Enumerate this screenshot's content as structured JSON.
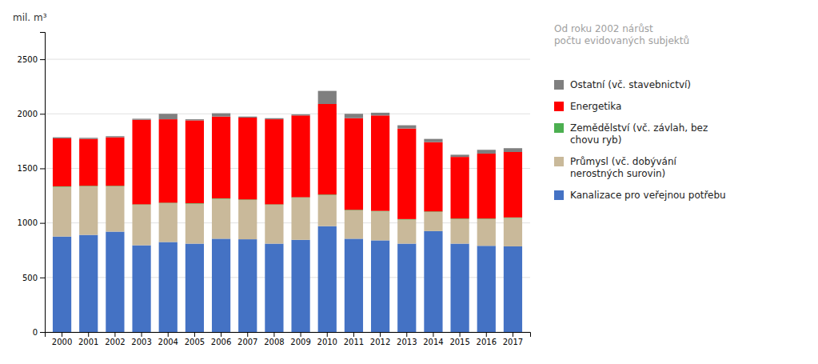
{
  "chart_data": {
    "type": "bar",
    "stacked": true,
    "categories": [
      "2000",
      "2001",
      "2002",
      "2003",
      "2004",
      "2005",
      "2006",
      "2007",
      "2008",
      "2009",
      "2010",
      "2011",
      "2012",
      "2013",
      "2014",
      "2015",
      "2016",
      "2017"
    ],
    "series": [
      {
        "name": "Kanalizace pro veřejnou potřebu",
        "color": "#4472C4",
        "values": [
          875,
          890,
          920,
          795,
          825,
          810,
          855,
          850,
          810,
          845,
          970,
          855,
          840,
          810,
          925,
          810,
          790,
          785
        ]
      },
      {
        "name": "Průmysl (vč. dobývání\nnerostných surovin)",
        "color": "#C9B99A",
        "values": [
          455,
          445,
          415,
          370,
          355,
          365,
          365,
          360,
          355,
          385,
          285,
          260,
          265,
          220,
          175,
          225,
          245,
          260
        ]
      },
      {
        "name": "Zemědělství (vč. závlah, bez\nchovu ryb)",
        "color": "#4CAF50",
        "values": [
          5,
          5,
          5,
          5,
          5,
          5,
          5,
          5,
          5,
          5,
          5,
          5,
          5,
          5,
          5,
          5,
          5,
          5
        ]
      },
      {
        "name": "Energetika",
        "color": "#FF0000",
        "values": [
          440,
          430,
          445,
          775,
          765,
          760,
          750,
          750,
          780,
          750,
          830,
          840,
          875,
          830,
          635,
          565,
          595,
          600
        ]
      },
      {
        "name": "Ostatní (vč. stavebnictví)",
        "color": "#7F7F7F",
        "values": [
          10,
          10,
          10,
          10,
          50,
          10,
          30,
          10,
          10,
          10,
          120,
          40,
          25,
          30,
          30,
          20,
          35,
          35
        ]
      }
    ],
    "y_label": "mil. m³",
    "annotation": "Od roku 2002 nárůst\npočtu evidovaných subjektů",
    "ylim": [
      0,
      2750
    ],
    "yticks": [
      0,
      500,
      1000,
      1500,
      2000,
      2500
    ],
    "grid": true
  }
}
